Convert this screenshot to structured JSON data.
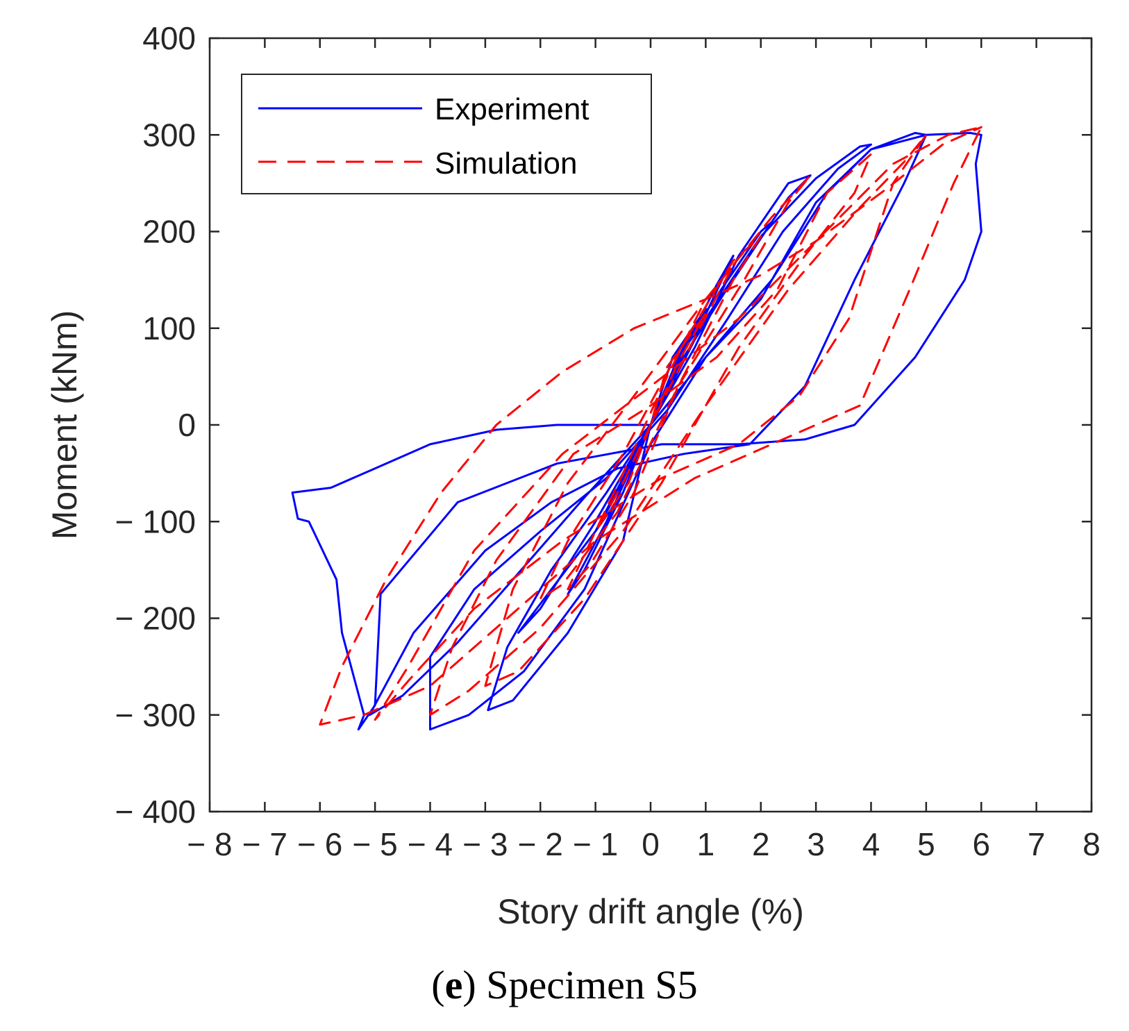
{
  "chart_data": {
    "type": "line",
    "title": "",
    "xlabel": "Story drift angle (%)",
    "ylabel": "Moment (kNm)",
    "xlim": [
      -8,
      8
    ],
    "ylim": [
      -400,
      400
    ],
    "x_ticks": [
      -8,
      -7,
      -6,
      -5,
      -4,
      -3,
      -2,
      -1,
      0,
      1,
      2,
      3,
      4,
      5,
      6,
      7,
      8
    ],
    "x_tick_labels": [
      "− 8",
      "− 7",
      "− 6",
      "− 5",
      "− 4",
      "− 3",
      "− 2",
      "− 1",
      "0",
      "1",
      "2",
      "3",
      "4",
      "5",
      "6",
      "7",
      "8"
    ],
    "y_ticks": [
      -400,
      -300,
      -200,
      -100,
      0,
      100,
      200,
      300,
      400
    ],
    "y_tick_labels": [
      "− 400",
      "− 300",
      "− 200",
      "− 100",
      "0",
      "100",
      "200",
      "300",
      "400"
    ],
    "grid": false,
    "legend_position": "top-left",
    "series": [
      {
        "name": "Experiment",
        "color": "#0000ff",
        "style": "solid",
        "x": [
          0,
          0.5,
          1.0,
          0.4,
          0,
          -0.5,
          -1.0,
          -0.5,
          0,
          0.8,
          1.5,
          1.2,
          0.5,
          0,
          -0.8,
          -1.5,
          -1.2,
          -0.5,
          0,
          0.8,
          2.0,
          2.2,
          1.5,
          0.5,
          0,
          -1.0,
          -2.0,
          -2.4,
          -2.0,
          -1.0,
          0,
          0.8,
          1.6,
          2.5,
          2.9,
          2.5,
          1.6,
          0.6,
          0,
          -0.8,
          -1.8,
          -2.6,
          -2.95,
          -2.5,
          -1.5,
          -0.5,
          0,
          1.0,
          2.0,
          3.0,
          3.8,
          4.0,
          3.4,
          2.4,
          1.4,
          0.3,
          -0.8,
          -2.0,
          -3.2,
          -4.0,
          -4.0,
          -3.3,
          -2.3,
          -1.2,
          0,
          1.0,
          2.0,
          3.0,
          4.0,
          4.8,
          5.0,
          4.6,
          3.7,
          2.8,
          1.8,
          0.6,
          -0.6,
          -1.8,
          -3.0,
          -4.3,
          -5.1,
          -4.5,
          -3.5,
          -2.5,
          -1.2,
          0,
          1.0,
          2.2,
          3.2,
          4.0,
          5.0,
          5.8,
          6.0,
          5.9,
          6.0,
          5.7,
          4.8,
          3.7,
          2.8,
          1.6,
          0.2,
          -1.7,
          -3.5,
          -4.9,
          -5.0,
          -5.3,
          -5.2,
          -5.6,
          -5.7,
          -6.2,
          -6.4,
          -6.5,
          -5.8,
          -5.0,
          -4.0,
          -2.8,
          -1.7,
          -0.8,
          0
        ],
        "y": [
          0,
          70,
          120,
          70,
          0,
          -60,
          -110,
          -70,
          0,
          90,
          175,
          145,
          65,
          0,
          -100,
          -175,
          -150,
          -70,
          0,
          100,
          200,
          210,
          150,
          70,
          0,
          -100,
          -190,
          -215,
          -185,
          -110,
          0,
          80,
          175,
          250,
          258,
          235,
          160,
          70,
          0,
          -70,
          -150,
          -230,
          -295,
          -285,
          -215,
          -120,
          0,
          110,
          195,
          255,
          288,
          290,
          265,
          200,
          110,
          15,
          -55,
          -110,
          -170,
          -240,
          -315,
          -300,
          -255,
          -170,
          -20,
          70,
          130,
          230,
          285,
          302,
          300,
          250,
          150,
          40,
          -20,
          -30,
          -45,
          -80,
          -130,
          -215,
          -300,
          -280,
          -225,
          -160,
          -75,
          0,
          70,
          150,
          240,
          285,
          300,
          302,
          300,
          270,
          200,
          150,
          70,
          0,
          -15,
          -20,
          -20,
          -40,
          -80,
          -175,
          -290,
          -315,
          -300,
          -215,
          -160,
          -100,
          -97,
          -70,
          -65,
          -45,
          -20,
          -5,
          0,
          0,
          0
        ]
      },
      {
        "name": "Simulation",
        "color": "#ff0000",
        "style": "dashed",
        "x": [
          0,
          0.5,
          1.0,
          0.3,
          0,
          -0.5,
          -1.0,
          -0.4,
          0,
          0.8,
          1.5,
          1.0,
          0.3,
          -0.5,
          -1.5,
          -1.1,
          -0.3,
          0.5,
          1.5,
          2.0,
          1.5,
          0.5,
          -0.5,
          -1.5,
          -2.0,
          -1.6,
          -0.6,
          0.5,
          1.7,
          2.5,
          2.9,
          2.2,
          1.0,
          -0.3,
          -1.5,
          -2.5,
          -3.0,
          -2.4,
          -1.2,
          0.2,
          1.6,
          2.8,
          3.7,
          4.0,
          3.2,
          2.3,
          1.2,
          0,
          -1.4,
          -2.8,
          -3.6,
          -4.0,
          -3.3,
          -2.0,
          -0.5,
          1.0,
          2.5,
          3.8,
          4.6,
          5.0,
          4.4,
          3.6,
          2.7,
          1.6,
          0.2,
          -1.6,
          -3.2,
          -4.4,
          -5.0,
          -4.4,
          -3.2,
          -1.6,
          0,
          1.6,
          3.0,
          4.4,
          5.4,
          6.0,
          5.5,
          4.7,
          3.8,
          2.6,
          0.8,
          -1.0,
          -2.6,
          -4.0,
          -5.2,
          -6.0,
          -5.6,
          -4.8,
          -3.8,
          -2.8,
          -1.6,
          -0.3,
          1.0,
          2.0,
          3.0,
          4.3,
          5.3,
          6.0
        ],
        "y": [
          0,
          65,
          115,
          60,
          0,
          -60,
          -110,
          -60,
          0,
          90,
          165,
          130,
          50,
          -50,
          -170,
          -145,
          -70,
          40,
          150,
          195,
          170,
          75,
          -30,
          -120,
          -180,
          -165,
          -90,
          40,
          150,
          230,
          258,
          215,
          130,
          30,
          -60,
          -170,
          -270,
          -255,
          -180,
          -60,
          80,
          175,
          240,
          280,
          240,
          140,
          70,
          20,
          -30,
          -140,
          -230,
          -300,
          -275,
          -210,
          -110,
          20,
          140,
          225,
          272,
          300,
          250,
          110,
          30,
          -20,
          -55,
          -120,
          -190,
          -265,
          -305,
          -250,
          -130,
          -30,
          40,
          110,
          190,
          270,
          300,
          308,
          250,
          140,
          20,
          -10,
          -55,
          -120,
          -200,
          -270,
          -300,
          -310,
          -250,
          -160,
          -70,
          0,
          55,
          100,
          130,
          155,
          190,
          245,
          290,
          308
        ]
      }
    ],
    "legend": [
      "Experiment",
      "Simulation"
    ],
    "caption_label": "e",
    "caption_text": "Specimen S5"
  }
}
